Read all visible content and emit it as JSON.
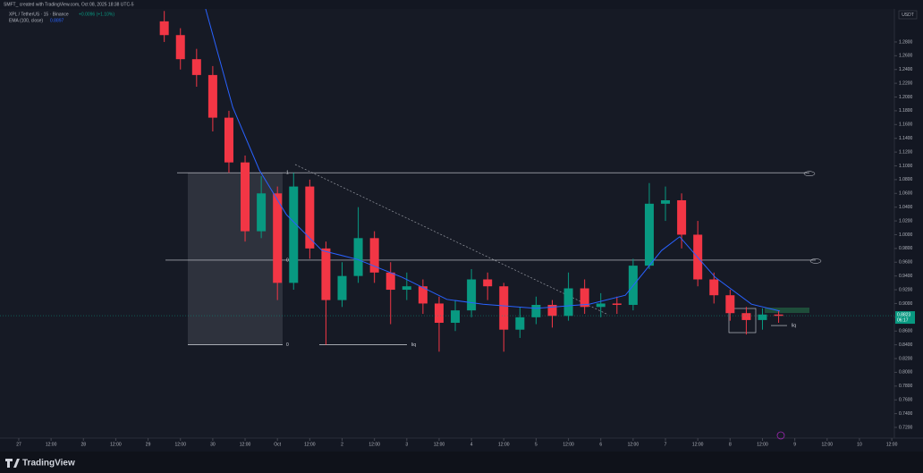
{
  "chart_data": {
    "type": "candlestick",
    "watermark": "SMFT_ created with TradingView.com, Oct 08, 2025 18:38 UTC-5",
    "title": "XPL / TetherUS · 15 · Binance",
    "change": "+0.0096 (+1.10%)",
    "currency": "USDT",
    "brand": "TradingView",
    "up_color": "#089981",
    "down_color": "#f23645",
    "grid": false,
    "x": [
      2.25,
      2.5,
      2.75,
      3,
      3.25,
      3.5,
      3.75,
      4,
      4.25,
      4.5,
      4.75,
      5,
      5.25,
      5.5,
      5.75,
      6,
      6.25,
      6.5,
      6.75,
      7,
      7.25,
      7.5,
      7.75,
      8,
      8.25,
      8.5,
      8.75,
      9,
      9.25,
      9.5,
      9.75,
      10,
      10.25,
      10.5,
      10.75,
      11,
      11.25,
      11.5,
      11.75
    ],
    "open": [
      1.31,
      1.29,
      1.255,
      1.232,
      1.17,
      1.105,
      1.005,
      1.06,
      0.93,
      1.07,
      0.98,
      0.905,
      0.94,
      0.995,
      0.945,
      0.92,
      0.925,
      0.9,
      0.872,
      0.89,
      0.935,
      0.925,
      0.862,
      0.88,
      0.898,
      0.882,
      0.922,
      0.895,
      0.9,
      0.898,
      0.955,
      1.045,
      1.05,
      1.0,
      0.935,
      0.912,
      0.886,
      0.876,
      0.884
    ],
    "high": [
      1.325,
      1.3,
      1.27,
      1.245,
      1.18,
      1.115,
      1.085,
      1.07,
      1.09,
      1.08,
      0.99,
      0.96,
      1.04,
      1.005,
      0.96,
      0.945,
      0.935,
      0.91,
      0.905,
      0.95,
      0.945,
      0.93,
      0.895,
      0.91,
      0.905,
      0.945,
      0.935,
      0.915,
      0.91,
      0.965,
      1.075,
      1.07,
      1.06,
      1.02,
      0.945,
      0.92,
      0.895,
      0.893,
      0.89
    ],
    "low": [
      1.28,
      1.24,
      1.215,
      1.15,
      1.09,
      0.99,
      0.995,
      0.905,
      0.92,
      0.965,
      0.84,
      0.895,
      0.93,
      0.93,
      0.87,
      0.905,
      0.885,
      0.83,
      0.86,
      0.88,
      0.905,
      0.83,
      0.85,
      0.87,
      0.865,
      0.875,
      0.885,
      0.88,
      0.885,
      0.89,
      0.95,
      1.02,
      0.98,
      0.925,
      0.9,
      0.875,
      0.855,
      0.862,
      0.872
    ],
    "close": [
      1.29,
      1.255,
      1.232,
      1.17,
      1.105,
      1.005,
      1.06,
      0.93,
      1.07,
      0.98,
      0.905,
      0.94,
      0.995,
      0.945,
      0.92,
      0.925,
      0.9,
      0.872,
      0.89,
      0.935,
      0.925,
      0.862,
      0.88,
      0.898,
      0.882,
      0.922,
      0.895,
      0.9,
      0.898,
      0.955,
      1.045,
      1.05,
      1.0,
      0.935,
      0.912,
      0.886,
      0.876,
      0.884,
      0.882
    ],
    "indicator": {
      "name": "EMA (100, close)",
      "value": 0.8897,
      "color": "#2962ff",
      "x": [
        2.89,
        3.31,
        3.72,
        4.14,
        4.69,
        5.24,
        5.93,
        6.62,
        7.18,
        8.0,
        8.82,
        9.38,
        9.94,
        10.22,
        10.77,
        11.33,
        11.77
      ],
      "values": [
        1.328,
        1.185,
        1.094,
        1.029,
        0.977,
        0.964,
        0.938,
        0.906,
        0.899,
        0.893,
        0.899,
        0.912,
        0.977,
        0.997,
        0.938,
        0.899,
        0.889
      ]
    },
    "current_price": 0.8823,
    "countdown": "06:17",
    "fib_levels": [
      {
        "label": "1",
        "value": 1.09
      },
      {
        "label": "0.5",
        "value": 0.963
      },
      {
        "label": "0",
        "value": 0.84
      }
    ],
    "liquidity": [
      {
        "label": "liq",
        "value": 0.84
      },
      {
        "label": "liq",
        "value": 0.868
      }
    ],
    "xlim": [
      -0.29,
      13.54
    ],
    "ylim": [
      0.7044,
      1.328
    ],
    "xticks": [
      {
        "value": 0,
        "label": "27"
      },
      {
        "value": 0.5,
        "label": "12:00"
      },
      {
        "value": 1,
        "label": "28"
      },
      {
        "value": 1.5,
        "label": "12:00"
      },
      {
        "value": 2,
        "label": "29"
      },
      {
        "value": 2.5,
        "label": "12:00"
      },
      {
        "value": 3,
        "label": "30"
      },
      {
        "value": 3.5,
        "label": "12:00"
      },
      {
        "value": 4,
        "label": "Oct"
      },
      {
        "value": 4.5,
        "label": "12:00"
      },
      {
        "value": 5,
        "label": "2"
      },
      {
        "value": 5.5,
        "label": "12:00"
      },
      {
        "value": 6,
        "label": "3"
      },
      {
        "value": 6.5,
        "label": "12:00"
      },
      {
        "value": 7,
        "label": "4"
      },
      {
        "value": 7.5,
        "label": "12:00"
      },
      {
        "value": 8,
        "label": "5"
      },
      {
        "value": 8.5,
        "label": "12:00"
      },
      {
        "value": 9,
        "label": "6"
      },
      {
        "value": 9.5,
        "label": "12:00"
      },
      {
        "value": 10,
        "label": "7"
      },
      {
        "value": 10.5,
        "label": "12:00"
      },
      {
        "value": 11,
        "label": "8"
      },
      {
        "value": 11.5,
        "label": "12:00"
      },
      {
        "value": 12,
        "label": "9"
      },
      {
        "value": 12.5,
        "label": "12:00"
      },
      {
        "value": 13,
        "label": "10"
      },
      {
        "value": 13.5,
        "label": "12:00"
      }
    ],
    "yticks": [
      {
        "value": 1.28,
        "label": "1.2800"
      },
      {
        "value": 1.26,
        "label": "1.2600"
      },
      {
        "value": 1.24,
        "label": "1.2400"
      },
      {
        "value": 1.22,
        "label": "1.2200"
      },
      {
        "value": 1.2,
        "label": "1.2000"
      },
      {
        "value": 1.18,
        "label": "1.1800"
      },
      {
        "value": 1.16,
        "label": "1.1600"
      },
      {
        "value": 1.14,
        "label": "1.1400"
      },
      {
        "value": 1.12,
        "label": "1.1200"
      },
      {
        "value": 1.1,
        "label": "1.1000"
      },
      {
        "value": 1.08,
        "label": "1.0800"
      },
      {
        "value": 1.06,
        "label": "1.0600"
      },
      {
        "value": 1.04,
        "label": "1.0400"
      },
      {
        "value": 1.02,
        "label": "1.0200"
      },
      {
        "value": 1.0,
        "label": "1.0000"
      },
      {
        "value": 0.98,
        "label": "0.9800"
      },
      {
        "value": 0.96,
        "label": "0.9600"
      },
      {
        "value": 0.94,
        "label": "0.9400"
      },
      {
        "value": 0.92,
        "label": "0.9200"
      },
      {
        "value": 0.9,
        "label": "0.9000"
      },
      {
        "value": 0.88,
        "label": "0.8800"
      },
      {
        "value": 0.86,
        "label": "0.8600"
      },
      {
        "value": 0.84,
        "label": "0.8400"
      },
      {
        "value": 0.82,
        "label": "0.8200"
      },
      {
        "value": 0.8,
        "label": "0.8000"
      },
      {
        "value": 0.78,
        "label": "0.7800"
      },
      {
        "value": 0.76,
        "label": "0.7600"
      },
      {
        "value": 0.74,
        "label": "0.7400"
      },
      {
        "value": 0.72,
        "label": "0.7200"
      }
    ]
  }
}
